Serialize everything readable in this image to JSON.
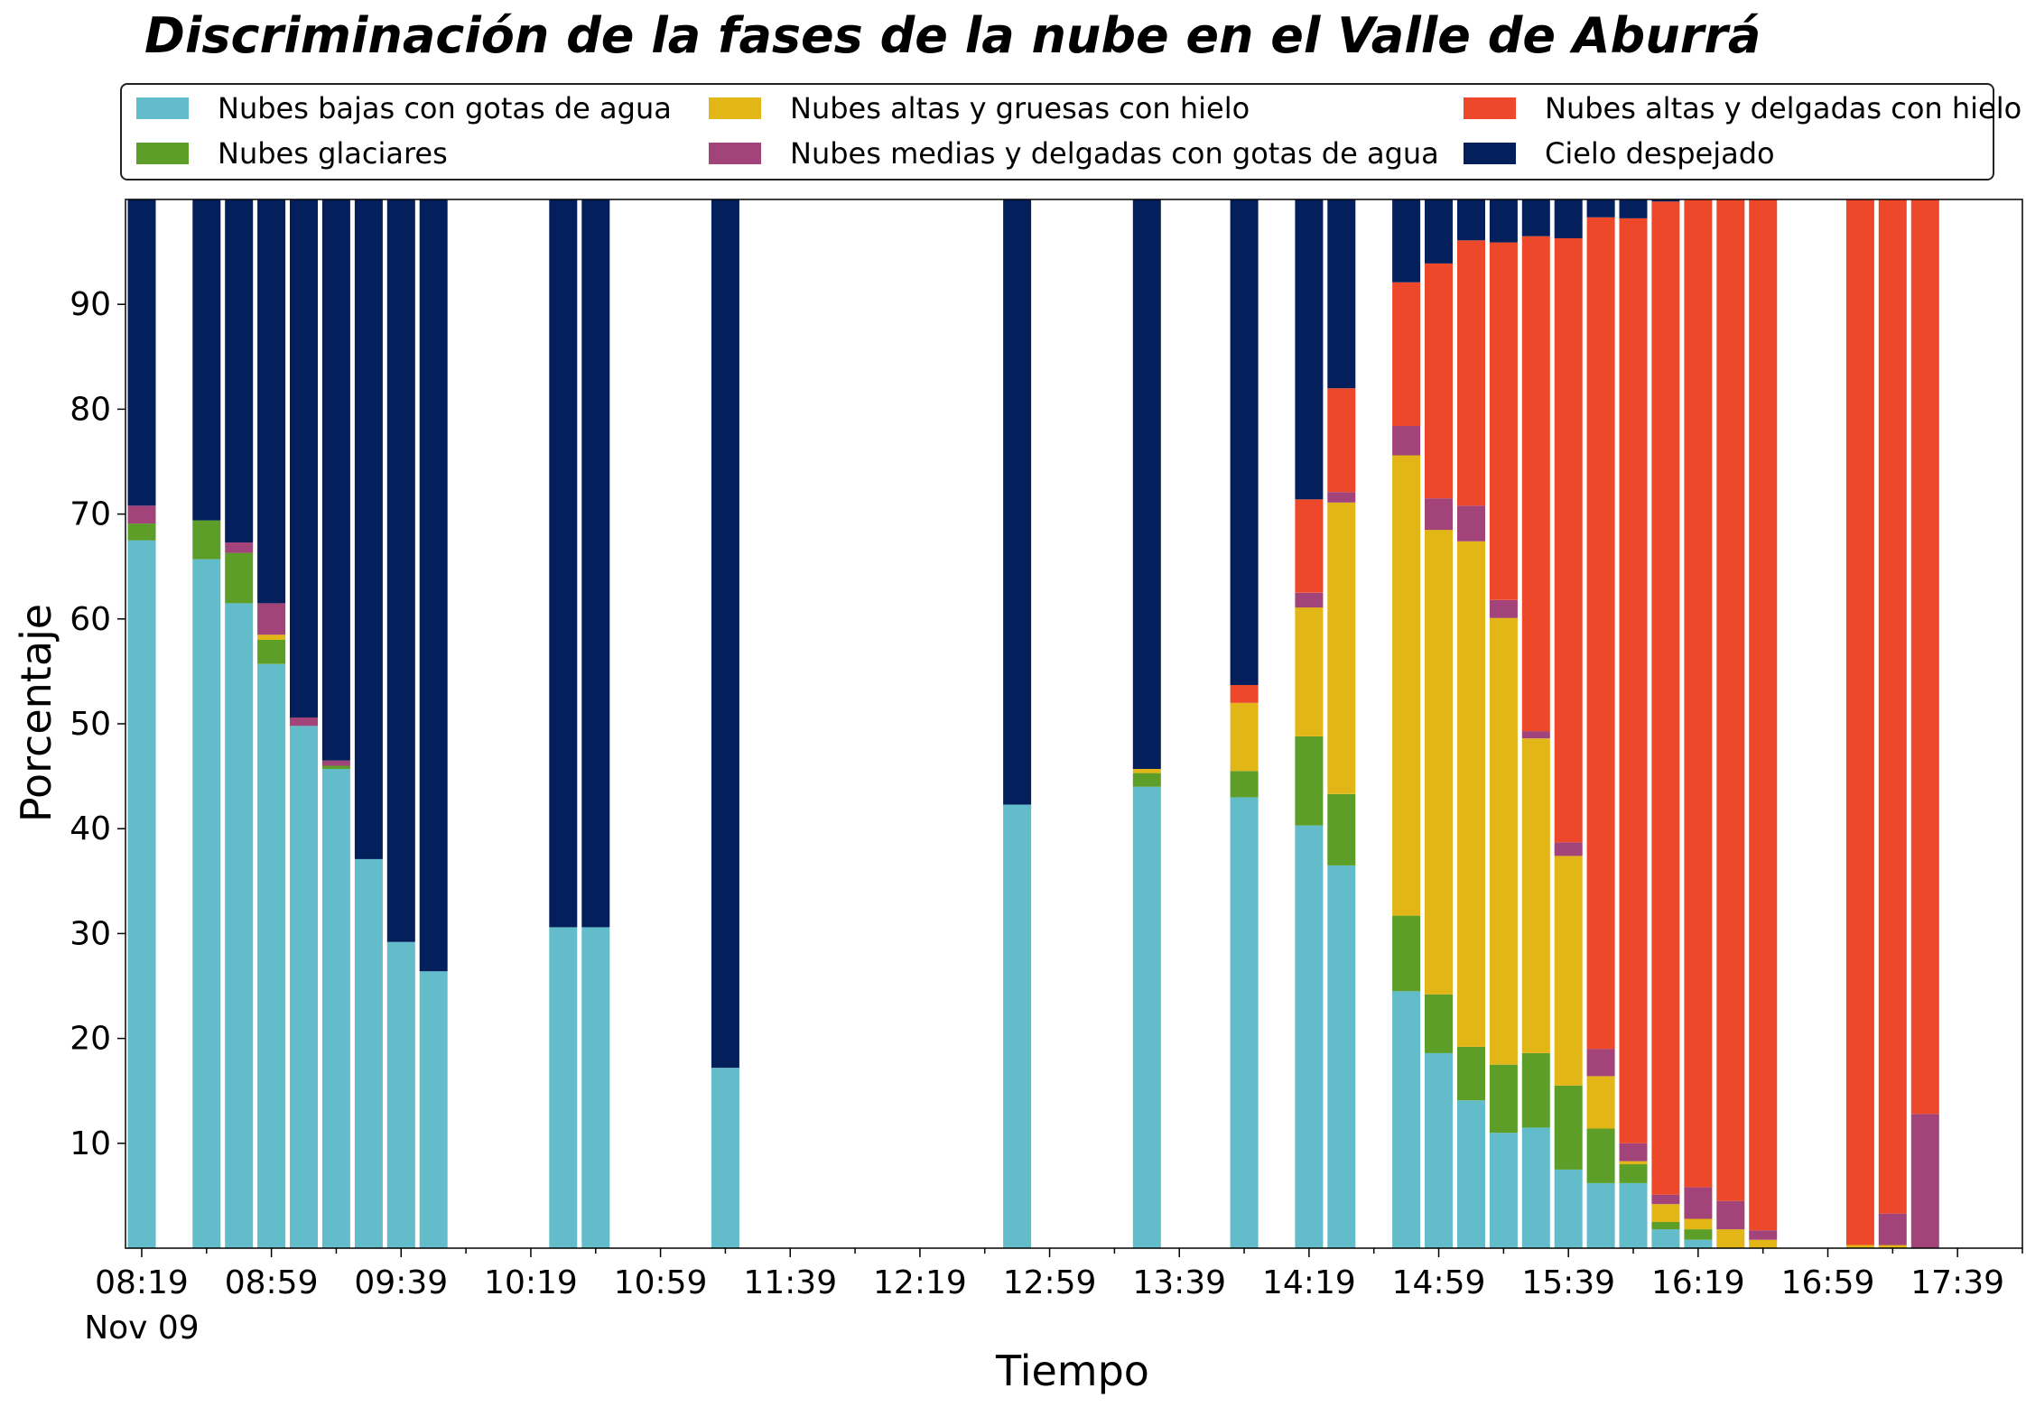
{
  "chart_data": {
    "type": "bar",
    "stacked": true,
    "title": "Discriminación de la fases de la nube en el Valle de Aburrá",
    "xlabel": "Tiempo",
    "ylabel": "Porcentaje",
    "ylim": [
      0,
      100
    ],
    "yticks": [
      10,
      20,
      30,
      40,
      50,
      60,
      70,
      80,
      90
    ],
    "xlim": [
      "08:14",
      "17:59"
    ],
    "x_ticks": [
      "08:19",
      "08:59",
      "09:39",
      "10:19",
      "10:59",
      "11:39",
      "12:19",
      "12:59",
      "13:39",
      "14:19",
      "14:59",
      "15:39",
      "16:19",
      "16:59",
      "17:39"
    ],
    "x_date_label": "Nov 09",
    "grid": false,
    "legend_position": "top",
    "x": [
      "08:19",
      "08:39",
      "08:49",
      "08:59",
      "09:09",
      "09:19",
      "09:29",
      "09:39",
      "09:49",
      "10:29",
      "10:39",
      "11:19",
      "12:49",
      "13:29",
      "13:59",
      "14:19",
      "14:29",
      "14:49",
      "14:59",
      "15:09",
      "15:19",
      "15:29",
      "15:39",
      "15:49",
      "15:59",
      "16:09",
      "16:19",
      "16:29",
      "16:39",
      "17:09",
      "17:19",
      "17:29"
    ],
    "series": [
      {
        "name": "Nubes bajas con gotas de agua",
        "color": "#63bcc9",
        "values": [
          67.5,
          65.7,
          61.5,
          55.7,
          49.8,
          45.7,
          37.1,
          29.2,
          26.4,
          30.6,
          30.6,
          17.2,
          42.3,
          44.0,
          43.0,
          40.3,
          36.5,
          24.5,
          18.6,
          14.1,
          11.0,
          11.5,
          7.5,
          6.2,
          6.2,
          1.8,
          0.8,
          0,
          0,
          0,
          0,
          0
        ]
      },
      {
        "name": "Nubes glaciares",
        "color": "#5c9e27",
        "values": [
          1.6,
          3.7,
          4.8,
          2.3,
          0,
          0.3,
          0,
          0,
          0,
          0,
          0,
          0,
          0,
          1.3,
          2.5,
          8.5,
          6.8,
          7.2,
          5.6,
          5.1,
          6.5,
          7.1,
          8.0,
          5.2,
          1.8,
          0.7,
          1.0,
          0,
          0,
          0,
          0,
          0
        ]
      },
      {
        "name": "Nubes altas y gruesas con hielo",
        "color": "#e2b617",
        "values": [
          0,
          0,
          0,
          0.5,
          0,
          0,
          0,
          0,
          0,
          0,
          0,
          0,
          0,
          0.4,
          6.5,
          12.3,
          27.8,
          43.9,
          44.3,
          48.2,
          42.6,
          30.0,
          21.9,
          5.0,
          0.3,
          1.7,
          1.0,
          1.8,
          0.8,
          0.3,
          0.3,
          0
        ]
      },
      {
        "name": "Nubes medias y delgadas con gotas de agua",
        "color": "#a2437a",
        "values": [
          1.7,
          0,
          1.0,
          3.0,
          0.8,
          0.5,
          0,
          0,
          0,
          0,
          0,
          0,
          0,
          0,
          0,
          1.4,
          1.0,
          2.8,
          3.0,
          3.4,
          1.7,
          0.7,
          1.3,
          2.6,
          1.7,
          0.9,
          3.0,
          2.7,
          0.9,
          0,
          3.0,
          12.8
        ]
      },
      {
        "name": "Nubes altas y delgadas con hielo",
        "color": "#ec4829",
        "values": [
          0,
          0,
          0,
          0,
          0,
          0,
          0,
          0,
          0,
          0,
          0,
          0,
          0,
          0,
          1.7,
          8.9,
          9.9,
          13.7,
          22.4,
          25.3,
          34.1,
          47.2,
          57.6,
          79.3,
          88.2,
          94.7,
          94.3,
          97.5,
          98.3,
          99.7,
          96.7,
          87.2
        ]
      },
      {
        "name": "Cielo despejado",
        "color": "#03205d",
        "values": [
          29.2,
          30.6,
          32.7,
          38.5,
          49.4,
          53.5,
          62.9,
          70.8,
          73.6,
          69.4,
          69.4,
          82.8,
          57.7,
          54.3,
          46.3,
          28.6,
          18.0,
          7.9,
          6.1,
          3.9,
          4.1,
          3.5,
          3.7,
          1.7,
          1.8,
          0.2,
          0,
          0,
          0,
          0,
          0,
          0
        ]
      }
    ]
  }
}
